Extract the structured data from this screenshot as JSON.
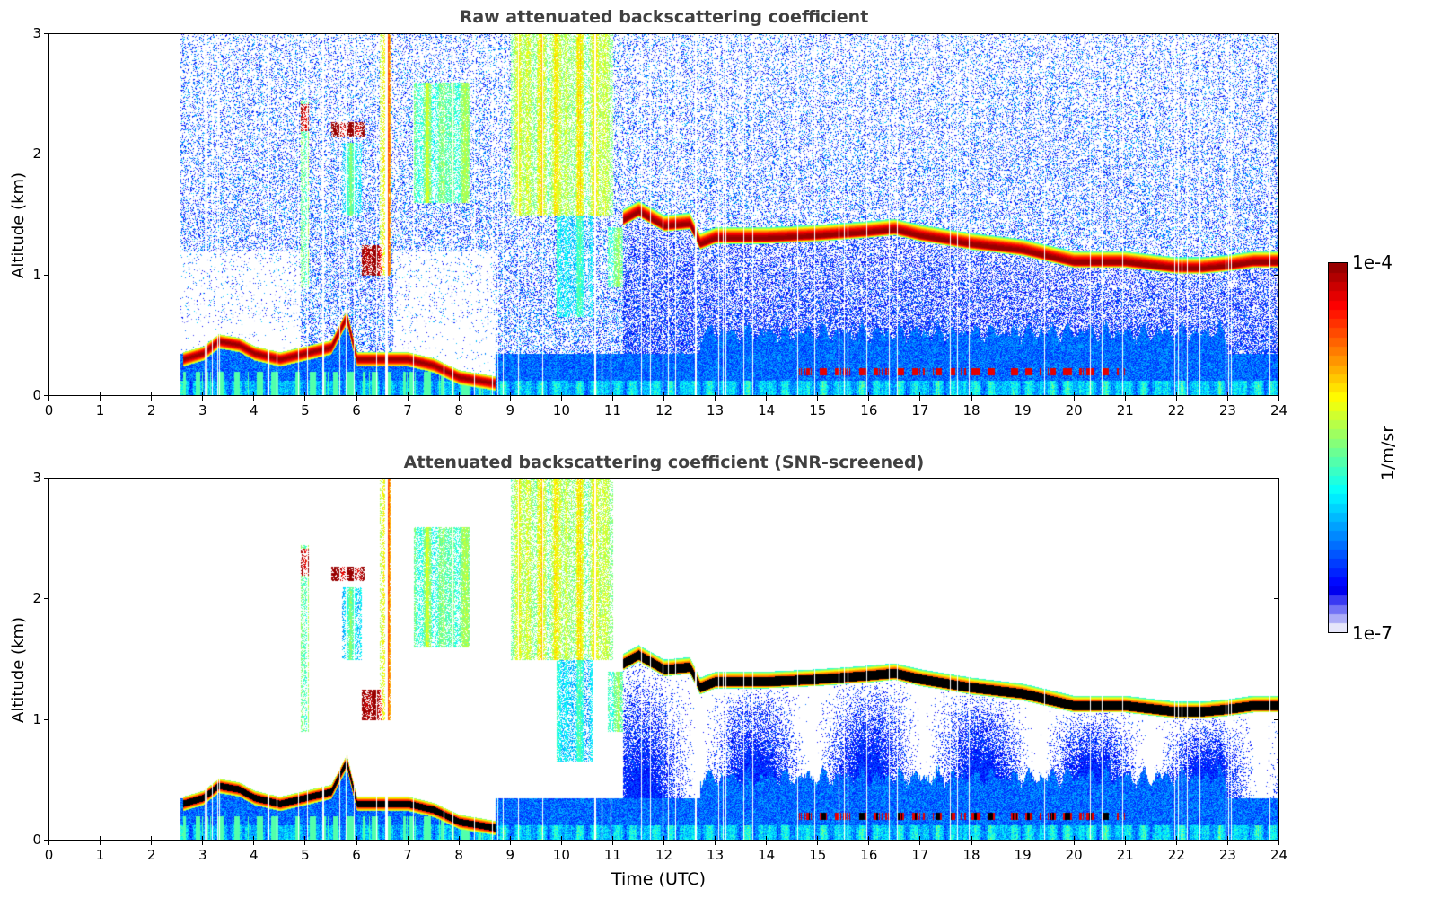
{
  "chart_data": [
    {
      "type": "heatmap",
      "title": "Raw attenuated backscattering coefficient",
      "xlabel": "",
      "ylabel": "Altitude (km)",
      "xlim": [
        0,
        24
      ],
      "ylim": [
        0,
        3
      ],
      "xticks": [
        "0",
        "1",
        "2",
        "3",
        "4",
        "5",
        "6",
        "7",
        "8",
        "9",
        "10",
        "11",
        "12",
        "13",
        "14",
        "15",
        "16",
        "17",
        "18",
        "19",
        "20",
        "21",
        "22",
        "23",
        "24"
      ],
      "yticks": [
        "0",
        "1",
        "2",
        "3"
      ],
      "screened": false
    },
    {
      "type": "heatmap",
      "title": "Attenuated backscattering coefficient (SNR-screened)",
      "xlabel": "Time (UTC)",
      "ylabel": "Altitude (km)",
      "xlim": [
        0,
        24
      ],
      "ylim": [
        0,
        3
      ],
      "xticks": [
        "0",
        "1",
        "2",
        "3",
        "4",
        "5",
        "6",
        "7",
        "8",
        "9",
        "10",
        "11",
        "12",
        "13",
        "14",
        "15",
        "16",
        "17",
        "18",
        "19",
        "20",
        "21",
        "22",
        "23",
        "24"
      ],
      "yticks": [
        "0",
        "1",
        "2",
        "3"
      ],
      "screened": true
    }
  ],
  "colorbar": {
    "label": "1/m/sr",
    "max_label": "1e-4",
    "min_label": "1e-7",
    "scale": "log",
    "range": [
      1e-07,
      0.0001
    ],
    "colormap": "jet"
  },
  "profile": {
    "data_start_hour": 2.55,
    "boundary_layer_top_km": [
      [
        2.6,
        0.3
      ],
      [
        3,
        0.35
      ],
      [
        3.3,
        0.45
      ],
      [
        3.7,
        0.42
      ],
      [
        4,
        0.35
      ],
      [
        4.5,
        0.3
      ],
      [
        5,
        0.35
      ],
      [
        5.5,
        0.4
      ],
      [
        5.8,
        0.65
      ],
      [
        6,
        0.3
      ],
      [
        7,
        0.3
      ],
      [
        7.5,
        0.25
      ],
      [
        8,
        0.15
      ],
      [
        8.7,
        0.1
      ]
    ],
    "cloud_base_km": [
      [
        11.2,
        1.45
      ],
      [
        11.5,
        1.52
      ],
      [
        12,
        1.4
      ],
      [
        12.5,
        1.42
      ],
      [
        12.7,
        1.25
      ],
      [
        13,
        1.3
      ],
      [
        14,
        1.3
      ],
      [
        15,
        1.32
      ],
      [
        16,
        1.35
      ],
      [
        16.5,
        1.37
      ],
      [
        17,
        1.32
      ],
      [
        18,
        1.25
      ],
      [
        19,
        1.2
      ],
      [
        20,
        1.1
      ],
      [
        21,
        1.1
      ],
      [
        22,
        1.05
      ],
      [
        22.5,
        1.05
      ],
      [
        23,
        1.07
      ],
      [
        23.5,
        1.1
      ],
      [
        24,
        1.1
      ]
    ],
    "elevated_features": [
      {
        "t": [
          9.0,
          11.0
        ],
        "z": [
          1.5,
          3.0
        ],
        "log_beta": -5.3
      },
      {
        "t": [
          6.45,
          6.65
        ],
        "z": [
          1.0,
          3.0
        ],
        "log_beta": -5.0
      },
      {
        "t": [
          4.9,
          5.05
        ],
        "z": [
          0.9,
          2.45
        ],
        "log_beta": -5.4
      },
      {
        "t": [
          4.9,
          5.05
        ],
        "z": [
          2.2,
          2.42
        ],
        "log_beta": -4.0
      },
      {
        "t": [
          5.5,
          6.15
        ],
        "z": [
          2.15,
          2.27
        ],
        "log_beta": -4.0
      },
      {
        "t": [
          5.7,
          6.1
        ],
        "z": [
          1.5,
          2.1
        ],
        "log_beta": -5.8
      },
      {
        "t": [
          9.9,
          10.6
        ],
        "z": [
          0.65,
          1.5
        ],
        "log_beta": -5.9
      },
      {
        "t": [
          10.9,
          11.2
        ],
        "z": [
          0.9,
          1.4
        ],
        "log_beta": -5.6
      },
      {
        "t": [
          6.1,
          6.5
        ],
        "z": [
          1.0,
          1.25
        ],
        "log_beta": -4.1
      },
      {
        "t": [
          7.1,
          8.2
        ],
        "z": [
          1.6,
          2.6
        ],
        "log_beta": -5.6
      }
    ]
  }
}
